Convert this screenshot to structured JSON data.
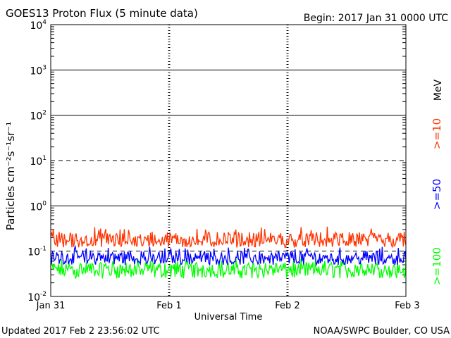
{
  "header": {
    "title": "GOES13 Proton Flux (5 minute data)",
    "begin": "Begin: 2017 Jan 31 0000 UTC"
  },
  "footer": {
    "updated": "Updated 2017 Feb  2 23:56:02 UTC",
    "source": "NOAA/SWPC Boulder, CO USA"
  },
  "chart_data": {
    "type": "line",
    "title": "GOES13 Proton Flux (5 minute data)",
    "xlabel": "Universal Time",
    "ylabel": "Particles cm⁻²s⁻¹sr⁻¹",
    "unit_label": "MeV",
    "y_scale": "log",
    "ylim": [
      0.01,
      10000
    ],
    "y_ticks": [
      {
        "base": "10",
        "exp": "4"
      },
      {
        "base": "10",
        "exp": "3"
      },
      {
        "base": "10",
        "exp": "2"
      },
      {
        "base": "10",
        "exp": "1"
      },
      {
        "base": "10",
        "exp": "0"
      },
      {
        "base": "10",
        "exp": "-1"
      },
      {
        "base": "10",
        "exp": "-2"
      }
    ],
    "x_ticks": [
      "Jan 31",
      "Feb 1",
      "Feb 2",
      "Feb 3"
    ],
    "xlim": [
      "2017-01-31",
      "2017-02-03"
    ],
    "series": [
      {
        "name": ">=10",
        "color": "#ff3300",
        "range": [
          0.12,
          0.35
        ],
        "typical": 0.17
      },
      {
        "name": ">=50",
        "color": "#0000ff",
        "range": [
          0.05,
          0.13
        ],
        "typical": 0.07
      },
      {
        "name": ">=100",
        "color": "#00ff00",
        "range": [
          0.025,
          0.07
        ],
        "typical": 0.04
      }
    ]
  }
}
